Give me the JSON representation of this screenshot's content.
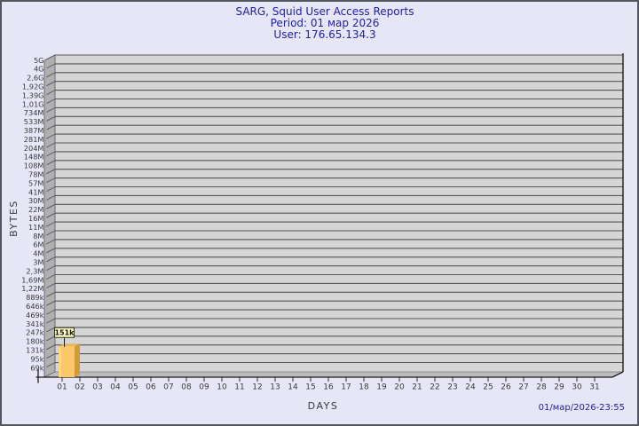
{
  "header": {
    "title": "SARG, Squid User Access Reports",
    "period_line": "Period: 01 мар 2026",
    "user_line": "User: 176.65.134.3"
  },
  "footer": {
    "timestamp": "01/мар/2026-23:55"
  },
  "colors": {
    "background": "#e6e6f6",
    "frame_border": "#55555e",
    "title_text": "#2121a3",
    "timestamp_text": "#2121a3",
    "axis_text": "#3a3a3a",
    "plot_plane": "#d5d5d5",
    "wall": "#b0b0b0",
    "floor": "#bdbdbd",
    "grid_line": "#55555a",
    "axis_line": "#1a1a1a",
    "bar_front": "#fbc768",
    "bar_side": "#d29a3e",
    "bar_top": "#e9b357",
    "bar_highlight": "#ffe3a1",
    "value_box_bg": "#ffffc6",
    "value_box_border": "#33331a",
    "value_text": "#111111"
  },
  "chart_data": {
    "type": "bar",
    "title": "SARG, Squid User Access Reports",
    "subtitle": [
      "Period: 01 мар 2026",
      "User: 176.65.134.3"
    ],
    "xlabel": "DAYS",
    "ylabel": "BYTES",
    "y_scale": "logarithmic",
    "grid": true,
    "legend": false,
    "style": "3d-bar",
    "ylim": [
      "69k",
      "5G"
    ],
    "y_tick_labels": [
      "5G",
      "4G",
      "2,6G",
      "1,92G",
      "1,39G",
      "1,01G",
      "734M",
      "533M",
      "387M",
      "281M",
      "204M",
      "148M",
      "108M",
      "78M",
      "57M",
      "41M",
      "30M",
      "22M",
      "16M",
      "11M",
      "8M",
      "6M",
      "4M",
      "3M",
      "2,3M",
      "1,69M",
      "1,22M",
      "889k",
      "646k",
      "469k",
      "341k",
      "247k",
      "180k",
      "131k",
      "95k",
      "69k"
    ],
    "x_categories": [
      "01",
      "02",
      "03",
      "04",
      "05",
      "06",
      "07",
      "08",
      "09",
      "10",
      "11",
      "12",
      "13",
      "14",
      "15",
      "16",
      "17",
      "18",
      "19",
      "20",
      "21",
      "22",
      "23",
      "24",
      "25",
      "26",
      "27",
      "28",
      "29",
      "30",
      "31"
    ],
    "bars": [
      {
        "x": "01",
        "label": "151k",
        "value": 151000
      }
    ]
  }
}
